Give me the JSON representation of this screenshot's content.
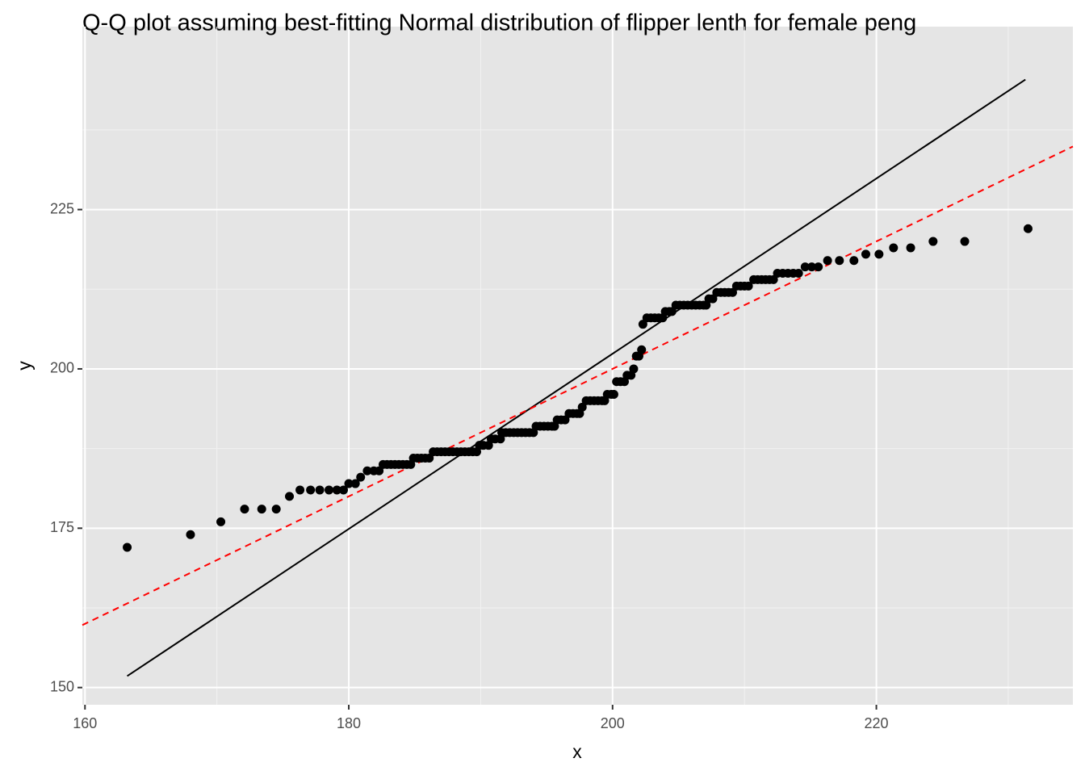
{
  "chart_data": {
    "type": "scatter",
    "title": "Q-Q plot assuming best-fitting Normal distribution of flipper lenth for female peng",
    "x_label": "x",
    "y_label": "y",
    "xlim": [
      159.8,
      234.9
    ],
    "ylim": [
      147.3,
      253.7
    ],
    "xticks": [
      160,
      180,
      200,
      220
    ],
    "yticks": [
      150,
      175,
      200,
      225
    ],
    "xminor": [
      170,
      190,
      210,
      230
    ],
    "yminor": [
      162.5,
      187.5,
      212.5,
      237.5
    ],
    "grid": true,
    "color": "#000000",
    "points": {
      "x": [
        163.2,
        168.0,
        170.3,
        172.1,
        173.4,
        174.5,
        175.5,
        176.3,
        177.1,
        177.8,
        178.5,
        179.1,
        179.6,
        180.0,
        180.5,
        180.9,
        181.4,
        181.9,
        182.3,
        182.6,
        182.9,
        183.2,
        183.5,
        183.8,
        184.1,
        184.4,
        184.7,
        184.9,
        185.2,
        185.5,
        185.8,
        186.1,
        186.4,
        186.7,
        187.0,
        187.3,
        187.6,
        187.9,
        188.2,
        188.5,
        188.8,
        189.1,
        189.4,
        189.7,
        189.9,
        190.2,
        190.6,
        190.8,
        191.1,
        191.5,
        191.6,
        191.9,
        192.2,
        192.5,
        192.8,
        193.1,
        193.4,
        193.7,
        194.0,
        194.2,
        194.5,
        194.8,
        195.1,
        195.4,
        195.6,
        195.8,
        196.1,
        196.4,
        196.7,
        197.0,
        197.3,
        197.5,
        197.7,
        198.0,
        198.3,
        198.6,
        198.9,
        199.2,
        199.4,
        199.6,
        199.9,
        200.1,
        200.3,
        200.6,
        200.9,
        201.1,
        201.4,
        201.6,
        201.8,
        202.0,
        202.2,
        202.3,
        202.6,
        202.9,
        203.2,
        203.5,
        203.8,
        204.0,
        204.3,
        204.5,
        204.8,
        205.1,
        205.4,
        205.7,
        206.0,
        206.3,
        206.6,
        206.9,
        207.1,
        207.3,
        207.6,
        207.9,
        208.2,
        208.5,
        208.8,
        209.1,
        209.4,
        209.7,
        210.0,
        210.3,
        210.7,
        211.0,
        211.3,
        211.6,
        211.9,
        212.2,
        212.5,
        212.9,
        213.3,
        213.7,
        214.1,
        214.6,
        215.1,
        215.6,
        216.3,
        217.2,
        218.3,
        219.2,
        220.2,
        221.3,
        222.6,
        224.3,
        226.7,
        231.5
      ],
      "y": [
        172,
        174,
        176,
        178,
        178,
        178,
        180,
        181,
        181,
        181,
        181,
        181,
        181,
        182,
        182,
        183,
        184,
        184,
        184,
        185,
        185,
        185,
        185,
        185,
        185,
        185,
        185,
        186,
        186,
        186,
        186,
        186,
        187,
        187,
        187,
        187,
        187,
        187,
        187,
        187,
        187,
        187,
        187,
        187,
        188,
        188,
        188,
        189,
        189,
        189,
        190,
        190,
        190,
        190,
        190,
        190,
        190,
        190,
        190,
        191,
        191,
        191,
        191,
        191,
        191,
        192,
        192,
        192,
        193,
        193,
        193,
        193,
        194,
        195,
        195,
        195,
        195,
        195,
        195,
        196,
        196,
        196,
        198,
        198,
        198,
        199,
        199,
        200,
        202,
        202,
        203,
        207,
        208,
        208,
        208,
        208,
        208,
        209,
        209,
        209,
        210,
        210,
        210,
        210,
        210,
        210,
        210,
        210,
        210,
        211,
        211,
        212,
        212,
        212,
        212,
        212,
        213,
        213,
        213,
        213,
        214,
        214,
        214,
        214,
        214,
        214,
        215,
        215,
        215,
        215,
        215,
        216,
        216,
        216,
        217,
        217,
        217,
        218,
        218,
        219,
        219,
        220,
        220,
        222
      ]
    },
    "lines": [
      {
        "x": [
          163.2,
          231.3
        ],
        "y": [
          151.8,
          245.4
        ],
        "color": "#000000",
        "dashed": false
      },
      {
        "x": [
          159.8,
          234.9
        ],
        "y": [
          159.8,
          234.9
        ],
        "color": "#ff0000",
        "dashed": true
      }
    ]
  }
}
